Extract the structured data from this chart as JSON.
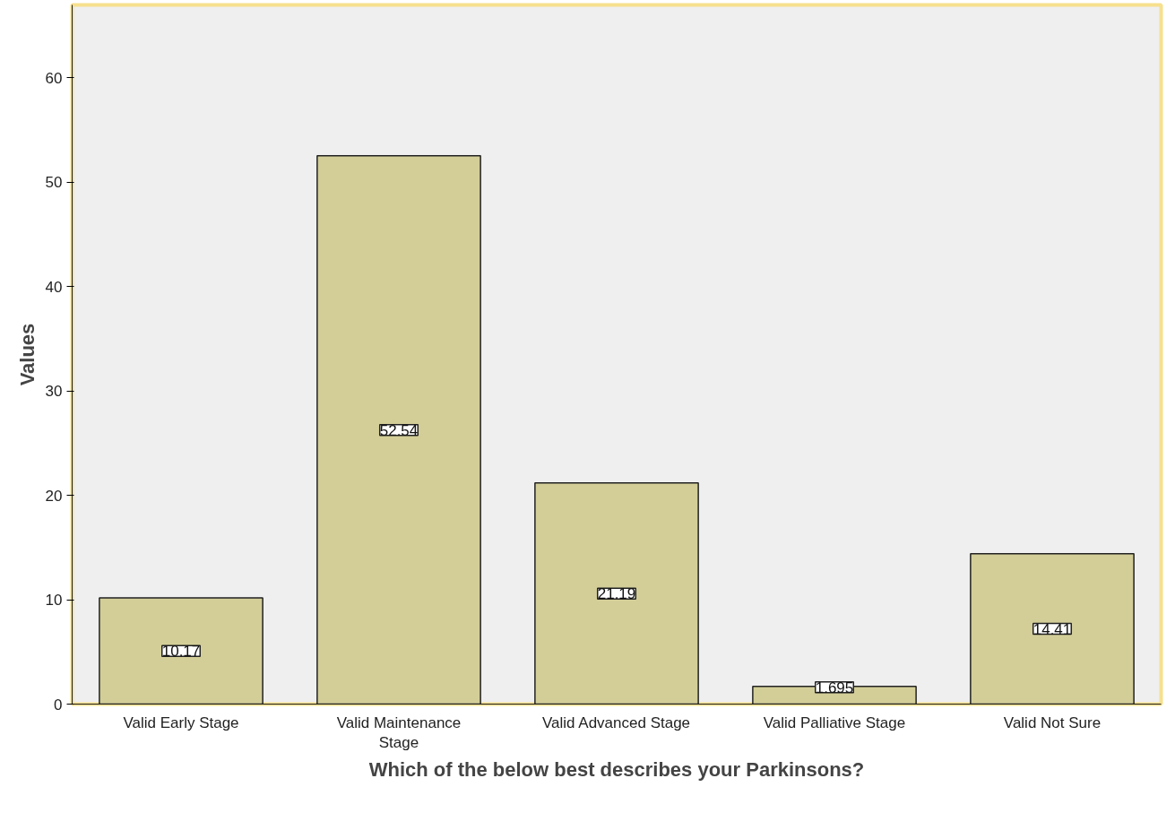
{
  "chart_data": {
    "type": "bar",
    "xlabel": "Which of the below best describes your Parkinsons?",
    "ylabel": "Values",
    "categories": [
      "Valid Early Stage",
      "Valid Maintenance Stage",
      "Valid Advanced Stage",
      "Valid Palliative Stage",
      "Valid Not Sure"
    ],
    "values": [
      10.17,
      52.54,
      21.19,
      1.695,
      14.41
    ],
    "color": "#d3ce98",
    "ylim": [
      0,
      67
    ],
    "yticks": [
      0,
      10,
      20,
      30,
      40,
      50,
      60
    ],
    "data_labels": true,
    "grid": false
  }
}
